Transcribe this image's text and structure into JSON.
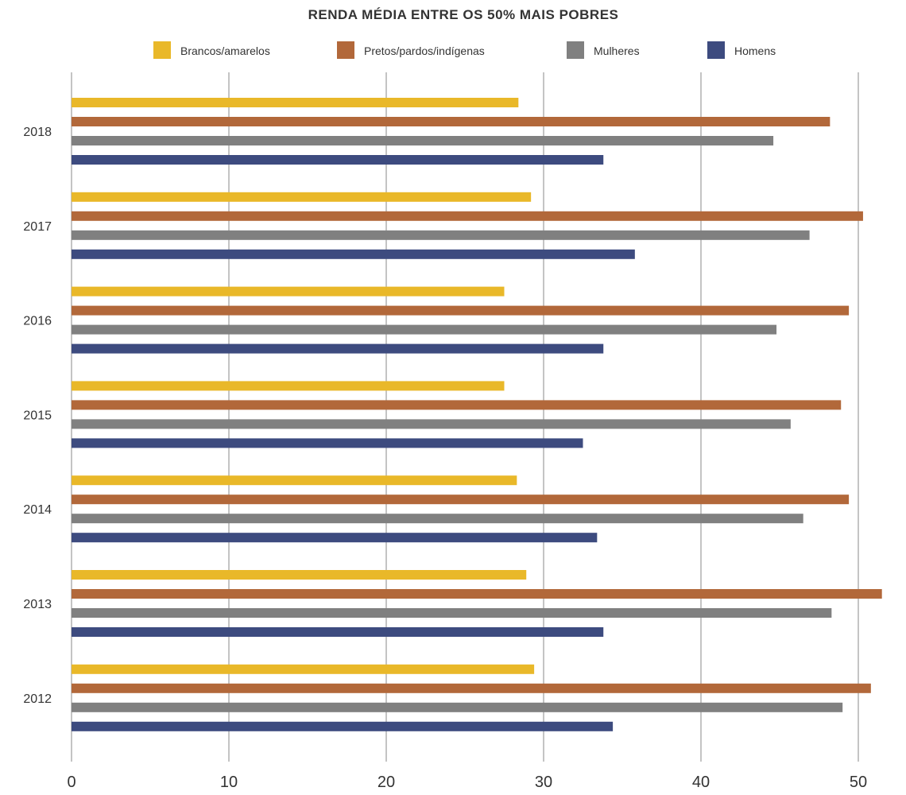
{
  "chart_data": {
    "type": "bar",
    "orientation": "horizontal",
    "title": "RENDA MÉDIA ENTRE OS 50% MAIS POBRES",
    "xlabel": "",
    "ylabel": "",
    "xlim": [
      0,
      50
    ],
    "x_ticks": [
      0,
      10,
      20,
      30,
      40,
      50
    ],
    "grid": true,
    "legend_position": "top",
    "categories": [
      "2018",
      "2017",
      "2016",
      "2015",
      "2014",
      "2013",
      "2012"
    ],
    "series": [
      {
        "name": "Brancos/amarelos",
        "color": "#E9B829",
        "values": [
          28.4,
          29.2,
          27.5,
          27.5,
          28.3,
          28.9,
          29.4
        ]
      },
      {
        "name": "Pretos/pardos/indígenas",
        "color": "#B2683A",
        "values": [
          48.2,
          50.3,
          49.4,
          48.9,
          49.4,
          51.5,
          50.8
        ]
      },
      {
        "name": "Mulheres",
        "color": "#808080",
        "values": [
          44.6,
          46.9,
          44.8,
          45.7,
          46.5,
          48.3,
          49.0
        ]
      },
      {
        "name": "Homens",
        "color": "#3D4B7F",
        "values": [
          33.8,
          35.8,
          33.8,
          32.5,
          33.4,
          33.8,
          34.4
        ]
      }
    ]
  }
}
